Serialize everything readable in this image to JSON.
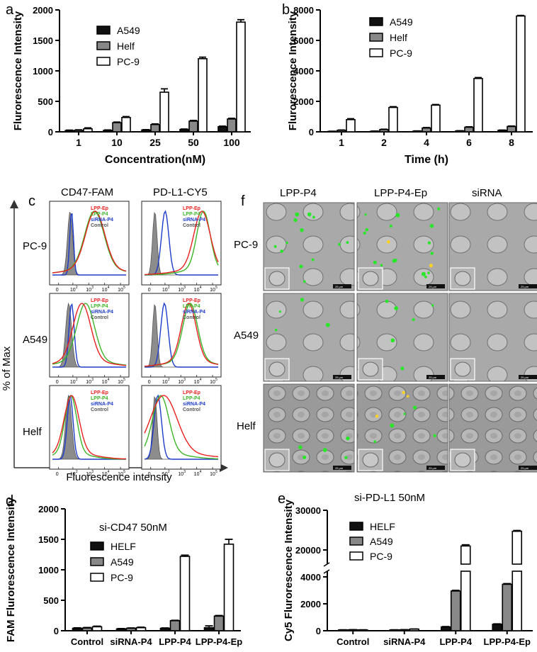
{
  "panel_letters": {
    "a": "a",
    "b": "b",
    "c": "c",
    "d": "d",
    "e": "e",
    "f": "f"
  },
  "colors": {
    "A549": "#111111",
    "Helf": "#888888",
    "PC-9": "#ffffff",
    "LPP-Ep": "#e82020",
    "LPP-P4": "#3cb428",
    "siRNA-P4": "#1e3cc8",
    "Control": "#8c8c8c"
  },
  "chart_data": [
    {
      "id": "a",
      "type": "bar",
      "title": "",
      "xlabel": "Concentration(nM)",
      "ylabel": "Flurorescence Intensity",
      "categories": [
        "1",
        "10",
        "25",
        "50",
        "100"
      ],
      "ylim": [
        0,
        2000
      ],
      "yticks": [
        "0",
        "500",
        "1000",
        "1500",
        "2000"
      ],
      "legend_position": "upper-left",
      "series": [
        {
          "name": "A549",
          "values": [
            20,
            25,
            30,
            40,
            85
          ],
          "errors": [
            8,
            6,
            6,
            6,
            8
          ]
        },
        {
          "name": "Helf",
          "values": [
            25,
            150,
            120,
            175,
            210
          ],
          "errors": [
            8,
            10,
            10,
            12,
            12
          ]
        },
        {
          "name": "PC-9",
          "values": [
            50,
            235,
            650,
            1200,
            1800
          ],
          "errors": [
            15,
            15,
            55,
            25,
            40
          ]
        }
      ]
    },
    {
      "id": "b",
      "type": "bar",
      "title": "",
      "xlabel": "Time (h)",
      "ylabel": "Flurorescence Intensity",
      "categories": [
        "1",
        "2",
        "4",
        "6",
        "8"
      ],
      "ylim": [
        0,
        8000
      ],
      "yticks": [
        "0",
        "2000",
        "4000",
        "6000",
        "8000"
      ],
      "legend_position": "upper-left",
      "series": [
        {
          "name": "A549",
          "values": [
            30,
            40,
            50,
            60,
            100
          ],
          "errors": [
            10,
            10,
            10,
            10,
            15
          ]
        },
        {
          "name": "Helf",
          "values": [
            100,
            150,
            250,
            300,
            350
          ],
          "errors": [
            20,
            20,
            30,
            30,
            30
          ]
        },
        {
          "name": "PC-9",
          "values": [
            800,
            1600,
            1750,
            3500,
            7600
          ],
          "errors": [
            60,
            50,
            40,
            60,
            40
          ]
        }
      ]
    },
    {
      "id": "d",
      "type": "bar",
      "title": "si-CD47  50nM",
      "xlabel": "",
      "ylabel": "FAM Flurorescence Intensity",
      "categories": [
        "Control",
        "siRNA-P4",
        "LPP-P4",
        "LPP-P4-Ep"
      ],
      "ylim": [
        0,
        2000
      ],
      "yticks": [
        "0",
        "500",
        "1000",
        "1500",
        "2000"
      ],
      "legend_position": "upper-left",
      "series": [
        {
          "name": "HELF",
          "values": [
            40,
            30,
            40,
            50
          ],
          "errors": [
            8,
            6,
            6,
            30
          ]
        },
        {
          "name": "A549",
          "values": [
            45,
            40,
            165,
            240
          ],
          "errors": [
            8,
            6,
            6,
            10
          ]
        },
        {
          "name": "PC-9",
          "values": [
            65,
            50,
            1220,
            1420
          ],
          "errors": [
            10,
            8,
            20,
            80
          ]
        }
      ]
    },
    {
      "id": "e",
      "type": "bar",
      "title": "si-PD-L1 50nM",
      "xlabel": "",
      "ylabel": "Cy5 Flurorescence Intensity",
      "categories": [
        "Control",
        "siRNA-P4",
        "LPP-P4",
        "LPP-P4-Ep"
      ],
      "yticks_lower": [
        "0",
        "2000",
        "4000"
      ],
      "yticks_upper": [
        "20000",
        "30000"
      ],
      "legend_position": "upper-left",
      "series": [
        {
          "name": "HELF",
          "values": [
            60,
            60,
            280,
            480
          ],
          "errors": [
            10,
            10,
            30,
            30
          ]
        },
        {
          "name": "A549",
          "values": [
            70,
            70,
            2950,
            3450
          ],
          "errors": [
            10,
            10,
            50,
            50
          ]
        },
        {
          "name": "PC-9",
          "values": [
            60,
            120,
            21000,
            24700
          ],
          "errors": [
            10,
            10,
            300,
            200
          ]
        }
      ]
    }
  ],
  "panel_c": {
    "col_headers": [
      "CD47-FAM",
      "PD-L1-CY5"
    ],
    "row_labels": [
      "PC-9",
      "A549",
      "Helf"
    ],
    "ylabel": "% of Max",
    "xlabel": "Fluorescence intensity",
    "legend": [
      "LPP-Ep",
      "LPP-P4",
      "siRNA-P4",
      "Control"
    ],
    "ticks": [
      "0",
      "10",
      "2",
      "10",
      "3",
      "10",
      "4",
      "10",
      "5"
    ]
  },
  "panel_f": {
    "col_headers": [
      "LPP-P4",
      "LPP-P4-Ep",
      "siRNA"
    ],
    "row_labels": [
      "PC-9",
      "A549",
      "Helf"
    ],
    "scale_text": "25 μm"
  }
}
